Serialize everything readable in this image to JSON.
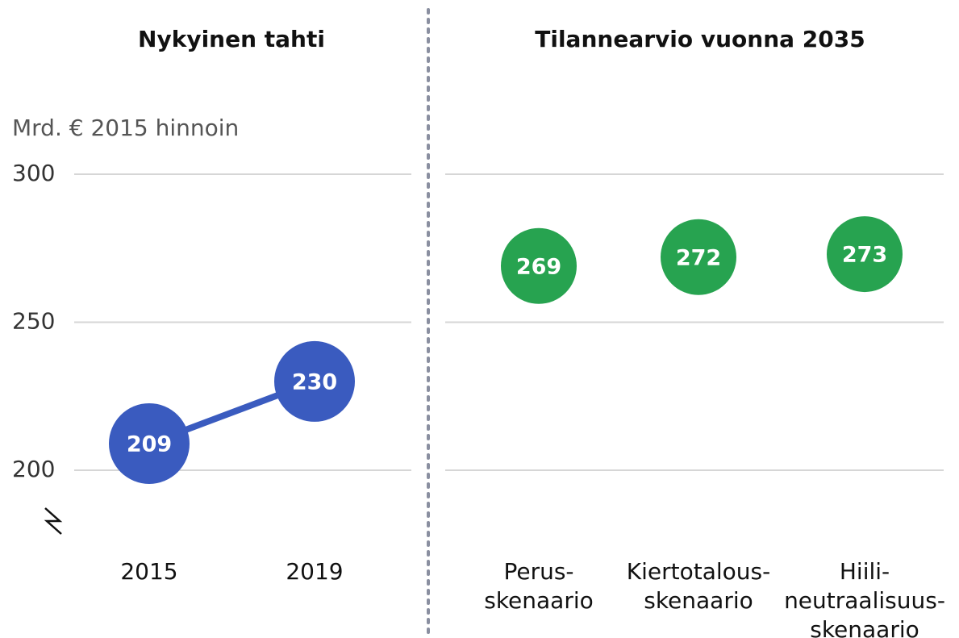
{
  "chart_data": [
    {
      "type": "line",
      "title": "Nykyinen tahti",
      "ylabel": "Mrd. € 2015 hinnoin",
      "categories": [
        "2015",
        "2019"
      ],
      "series": [
        {
          "color": "#3a5bbf",
          "values": [
            209,
            230
          ]
        }
      ],
      "ylim": [
        200,
        300
      ],
      "yticks": [
        200,
        250,
        300
      ],
      "grid": true
    },
    {
      "type": "scatter",
      "title": "Tilannearvio vuonna 2035",
      "categories": [
        [
          "Perus-",
          "skenaario"
        ],
        [
          "Kiertotalous-",
          "skenaario"
        ],
        [
          "Hiili-",
          "neutraalisuus-",
          "skenaario"
        ]
      ],
      "series": [
        {
          "color": "#27a350",
          "values": [
            269,
            272,
            273
          ]
        }
      ],
      "ylim": [
        200,
        300
      ]
    }
  ]
}
